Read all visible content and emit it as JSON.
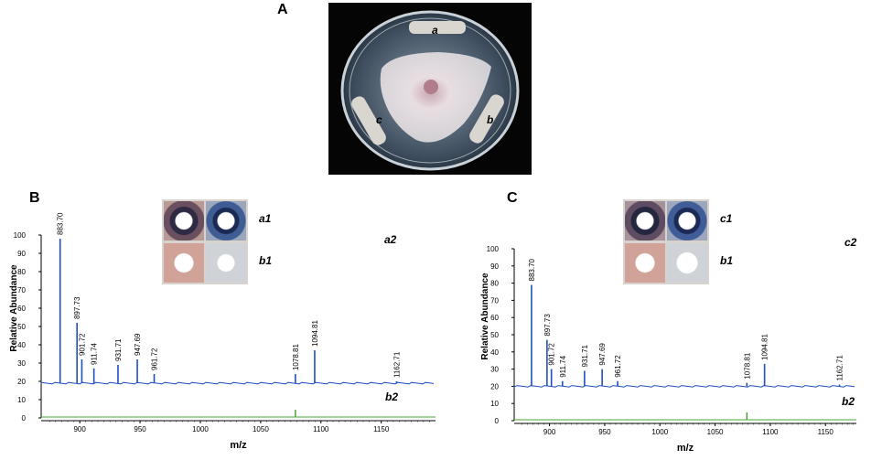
{
  "panels": {
    "a": "A",
    "b": "B",
    "c": "C"
  },
  "petri": {
    "labels": {
      "a": "a",
      "b": "b",
      "c": "c"
    }
  },
  "insets": {
    "left": {
      "top": "a1",
      "bottom": "b1"
    },
    "right": {
      "top": "c1",
      "bottom": "b1"
    }
  },
  "trace_labels": {
    "left_upper": "a2",
    "left_lower": "b2",
    "right_upper": "c2",
    "right_lower": "b2"
  },
  "colors": {
    "upper_trace": "#1f4fbf",
    "lower_trace": "#4aa33a"
  },
  "chart_data": [
    {
      "type": "line",
      "panel": "B",
      "xlabel": "m/z",
      "ylabel": "Relative Abundance",
      "xticks": [
        900,
        950,
        1000,
        1050,
        1100,
        1150
      ],
      "yticks": [
        0,
        10,
        20,
        30,
        40,
        50,
        60,
        70,
        80,
        90,
        100
      ],
      "xlim": [
        868,
        1195
      ],
      "ylim": [
        0,
        100
      ],
      "baseline_upper": 19,
      "peaks": [
        {
          "mz": 883.7,
          "label": "883.70",
          "intensity": 98
        },
        {
          "mz": 897.73,
          "label": "897.73",
          "intensity": 52
        },
        {
          "mz": 901.72,
          "label": "901.72",
          "intensity": 32
        },
        {
          "mz": 911.74,
          "label": "911.74",
          "intensity": 27
        },
        {
          "mz": 931.71,
          "label": "931.71",
          "intensity": 29
        },
        {
          "mz": 947.69,
          "label": "947.69",
          "intensity": 32
        },
        {
          "mz": 961.72,
          "label": "961.72",
          "intensity": 24
        },
        {
          "mz": 1078.81,
          "label": "1078.81",
          "intensity": 24
        },
        {
          "mz": 1094.81,
          "label": "1094.81",
          "intensity": 37
        },
        {
          "mz": 1162.71,
          "label": "1162.71",
          "intensity": 20
        }
      ]
    },
    {
      "type": "line",
      "panel": "C",
      "xlabel": "m/z",
      "ylabel": "Relative Abundance",
      "xticks": [
        900,
        950,
        1000,
        1050,
        1100,
        1150
      ],
      "yticks": [
        0,
        10,
        20,
        30,
        40,
        50,
        60,
        70,
        80,
        90,
        100
      ],
      "xlim": [
        868,
        1178
      ],
      "ylim": [
        0,
        100
      ],
      "baseline_upper": 20,
      "peaks": [
        {
          "mz": 883.7,
          "label": "883.70",
          "intensity": 79
        },
        {
          "mz": 897.73,
          "label": "897.73",
          "intensity": 47
        },
        {
          "mz": 901.72,
          "label": "901.72",
          "intensity": 30
        },
        {
          "mz": 911.74,
          "label": "911.74",
          "intensity": 23
        },
        {
          "mz": 931.71,
          "label": "931.71",
          "intensity": 29
        },
        {
          "mz": 947.69,
          "label": "947.69",
          "intensity": 30
        },
        {
          "mz": 961.72,
          "label": "961.72",
          "intensity": 23
        },
        {
          "mz": 1078.81,
          "label": "1078.81",
          "intensity": 22
        },
        {
          "mz": 1094.81,
          "label": "1094.81",
          "intensity": 33
        },
        {
          "mz": 1162.71,
          "label": "1162.71",
          "intensity": 21
        }
      ]
    }
  ]
}
